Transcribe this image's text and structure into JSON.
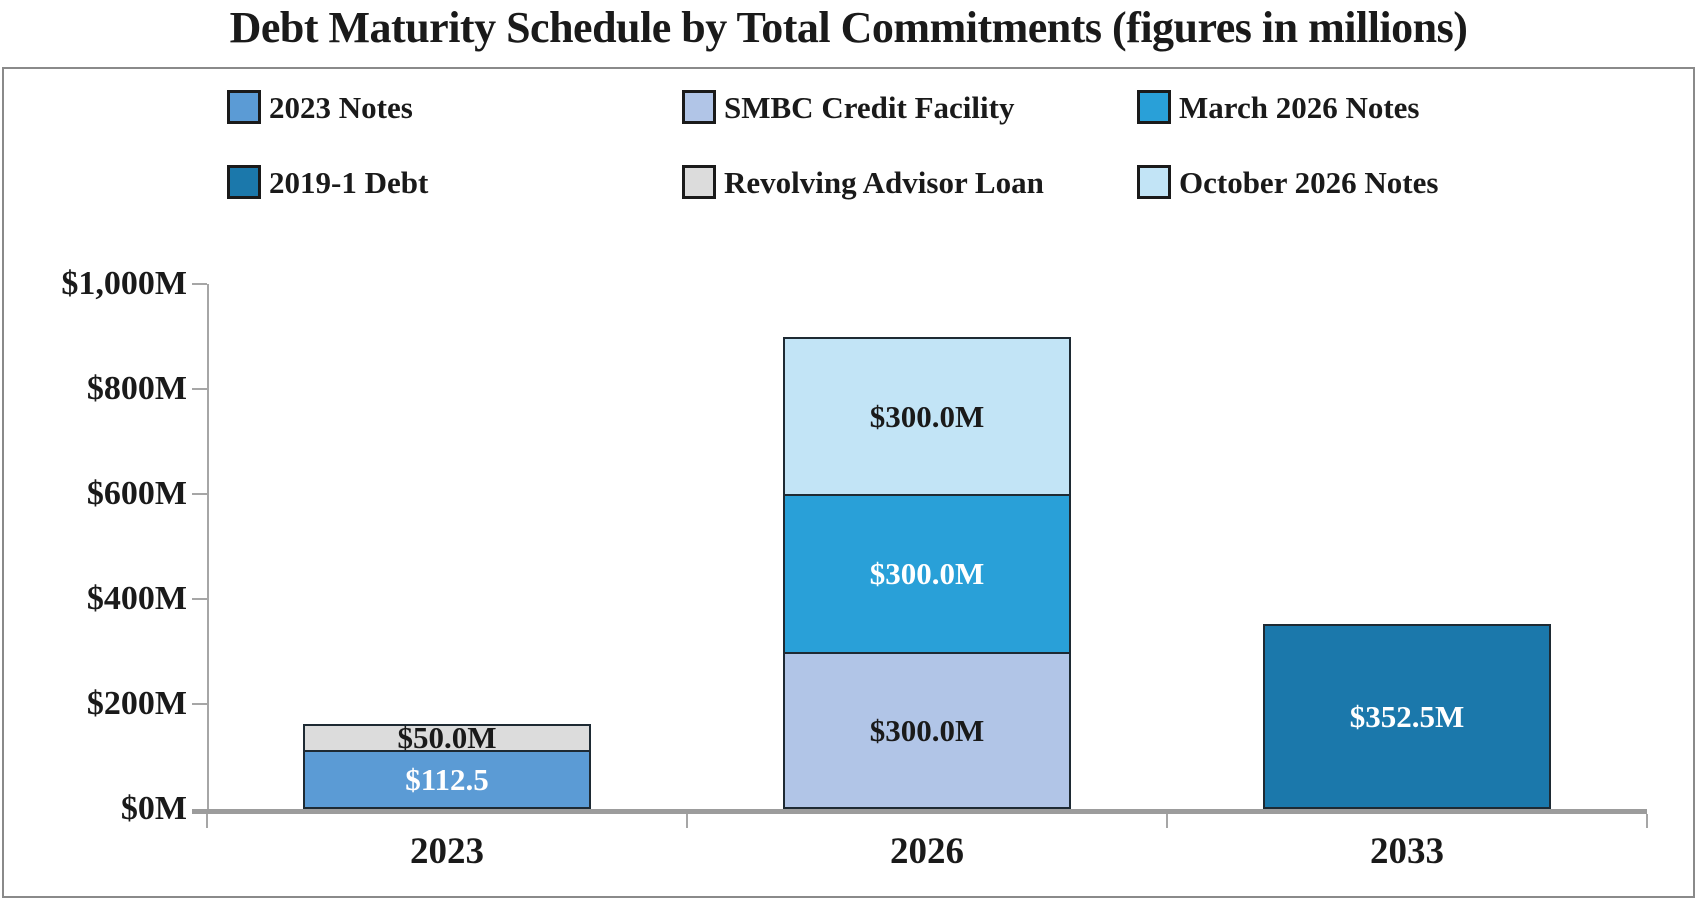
{
  "title": "Debt Maturity Schedule by Total Commitments (figures in millions)",
  "legend": {
    "rows": [
      [
        {
          "label": "2023 Notes",
          "color": "#5b9bd5"
        },
        {
          "label": "SMBC Credit Facility",
          "color": "#b1c5e7"
        },
        {
          "label": "March 2026 Notes",
          "color": "#29a0d8"
        }
      ],
      [
        {
          "label": "2019-1 Debt",
          "color": "#1b78ab"
        },
        {
          "label": "Revolving Advisor Loan",
          "color": "#dcdcdc"
        },
        {
          "label": "October 2026 Notes",
          "color": "#c2e4f6"
        }
      ]
    ]
  },
  "y_axis": {
    "ticks_top_to_bottom": [
      "$1,000M",
      "$800M",
      "$600M",
      "$400M",
      "$200M",
      "$0M"
    ]
  },
  "x_axis": {
    "categories": [
      "2023",
      "2026",
      "2033"
    ]
  },
  "chart_data": {
    "type": "bar",
    "stacked": true,
    "title": "Debt Maturity Schedule by Total Commitments (figures in millions)",
    "categories": [
      "2023",
      "2026",
      "2033"
    ],
    "series": [
      {
        "name": "2023 Notes",
        "color": "#5b9bd5",
        "values": [
          112.5,
          0,
          0
        ]
      },
      {
        "name": "SMBC Credit Facility",
        "color": "#b1c5e7",
        "values": [
          0,
          300,
          0
        ]
      },
      {
        "name": "March 2026 Notes",
        "color": "#29a0d8",
        "values": [
          0,
          300,
          0
        ]
      },
      {
        "name": "2019-1 Debt",
        "color": "#1b78ab",
        "values": [
          0,
          0,
          352.5
        ]
      },
      {
        "name": "Revolving Advisor Loan",
        "color": "#dcdcdc",
        "values": [
          50,
          0,
          0
        ]
      },
      {
        "name": "October 2026 Notes",
        "color": "#c2e4f6",
        "values": [
          0,
          300,
          0
        ]
      }
    ],
    "xlabel": "",
    "ylabel": "",
    "ylim": [
      0,
      1000
    ],
    "y_tick_interval": 200,
    "grid": false,
    "legend_position": "top",
    "bars": [
      {
        "category": "2023",
        "total": 162.5,
        "segments_bottom_to_top": [
          {
            "series": "2023 Notes",
            "value": 112.5,
            "label": "$112.5",
            "label_color": "#ffffff"
          },
          {
            "series": "Revolving Advisor Loan",
            "value": 50,
            "label": "$50.0M",
            "label_color": "#1a1a1a"
          }
        ]
      },
      {
        "category": "2026",
        "total": 900,
        "segments_bottom_to_top": [
          {
            "series": "SMBC Credit Facility",
            "value": 300,
            "label": "$300.0M",
            "label_color": "#1a1a1a"
          },
          {
            "series": "March 2026 Notes",
            "value": 300,
            "label": "$300.0M",
            "label_color": "#ffffff"
          },
          {
            "series": "October 2026 Notes",
            "value": 300,
            "label": "$300.0M",
            "label_color": "#1a1a1a"
          }
        ]
      },
      {
        "category": "2033",
        "total": 352.5,
        "segments_bottom_to_top": [
          {
            "series": "2019-1 Debt",
            "value": 352.5,
            "label": "$352.5M",
            "label_color": "#ffffff"
          }
        ]
      }
    ]
  }
}
